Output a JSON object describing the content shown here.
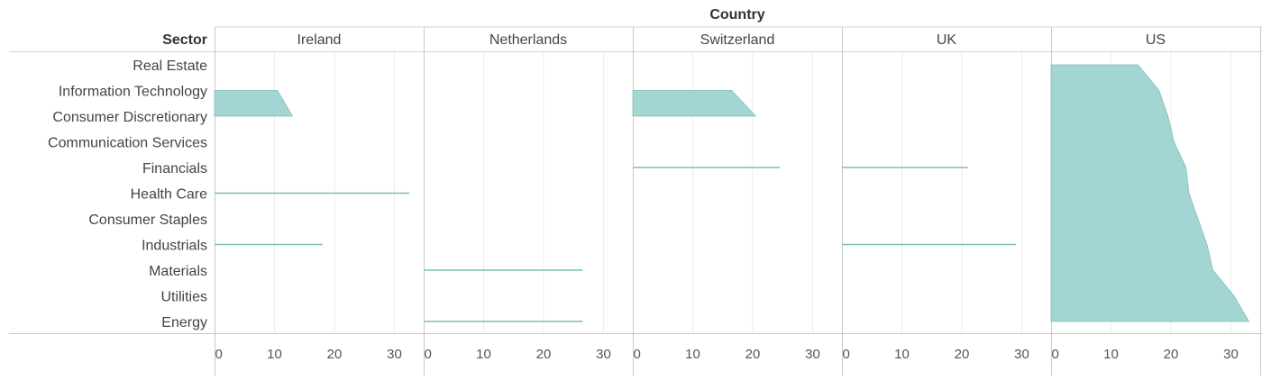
{
  "chart_data": {
    "type": "area",
    "title": "Country",
    "row_header": "Sector",
    "categories": [
      "Real Estate",
      "Information Technology",
      "Consumer Discretionary",
      "Communication Services",
      "Financials",
      "Health Care",
      "Consumer Staples",
      "Industrials",
      "Materials",
      "Utilities",
      "Energy"
    ],
    "x_ticks": [
      0,
      10,
      20,
      30
    ],
    "xlim": [
      0,
      34
    ],
    "grid": true,
    "colors": {
      "area": "#a3d6d2",
      "line": "#7fbdb7"
    },
    "panels": [
      {
        "country": "Ireland",
        "values": [
          null,
          10.5,
          13,
          null,
          null,
          32.5,
          null,
          18,
          null,
          null,
          null
        ]
      },
      {
        "country": "Netherlands",
        "values": [
          null,
          null,
          null,
          null,
          null,
          null,
          null,
          null,
          26.5,
          null,
          26.5
        ]
      },
      {
        "country": "Switzerland",
        "values": [
          null,
          16.5,
          20.5,
          null,
          24.5,
          null,
          null,
          null,
          null,
          null,
          null
        ]
      },
      {
        "country": "UK",
        "values": [
          null,
          null,
          null,
          null,
          21,
          null,
          null,
          29,
          null,
          null,
          null
        ]
      },
      {
        "country": "US",
        "values": [
          14.5,
          18,
          19.5,
          20.5,
          22.5,
          23,
          24.5,
          26,
          27,
          30.5,
          33
        ]
      }
    ]
  }
}
